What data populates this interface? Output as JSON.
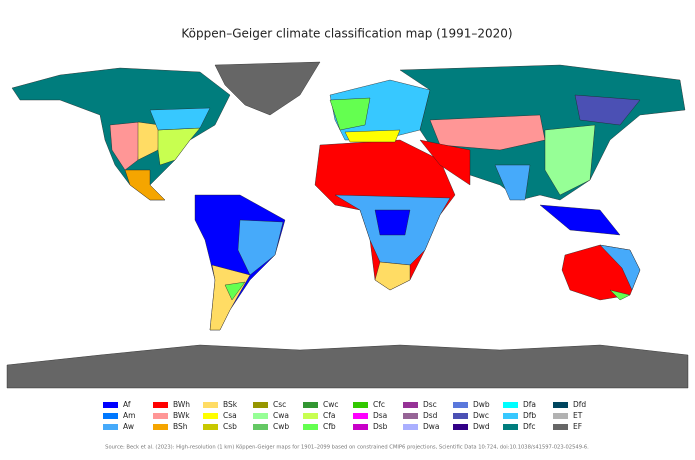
{
  "title": "Köppen–Geiger climate classification map (1991–2020)",
  "legend": [
    {
      "code": "Af",
      "color": "#0000ff"
    },
    {
      "code": "Am",
      "color": "#0078ff"
    },
    {
      "code": "Aw",
      "color": "#46aafa"
    },
    {
      "code": "BWh",
      "color": "#ff0000"
    },
    {
      "code": "BWk",
      "color": "#ff9696"
    },
    {
      "code": "BSh",
      "color": "#f5a500"
    },
    {
      "code": "BSk",
      "color": "#ffdc64"
    },
    {
      "code": "Csa",
      "color": "#ffff00"
    },
    {
      "code": "Csb",
      "color": "#c8c800"
    },
    {
      "code": "Csc",
      "color": "#969600"
    },
    {
      "code": "Cwa",
      "color": "#96ff96"
    },
    {
      "code": "Cwb",
      "color": "#64c864"
    },
    {
      "code": "Cwc",
      "color": "#329632"
    },
    {
      "code": "Cfa",
      "color": "#c8ff50"
    },
    {
      "code": "Cfb",
      "color": "#64ff50"
    },
    {
      "code": "Cfc",
      "color": "#32c800"
    },
    {
      "code": "Dsa",
      "color": "#ff00ff"
    },
    {
      "code": "Dsb",
      "color": "#c800c8"
    },
    {
      "code": "Dsc",
      "color": "#963296"
    },
    {
      "code": "Dsd",
      "color": "#966496"
    },
    {
      "code": "Dwa",
      "color": "#aaafff"
    },
    {
      "code": "Dwb",
      "color": "#5a78dc"
    },
    {
      "code": "Dwc",
      "color": "#4b50b4"
    },
    {
      "code": "Dwd",
      "color": "#320087"
    },
    {
      "code": "Dfa",
      "color": "#00ffff"
    },
    {
      "code": "Dfb",
      "color": "#37c8ff"
    },
    {
      "code": "Dfc",
      "color": "#007d7d"
    },
    {
      "code": "Dfd",
      "color": "#00465f"
    },
    {
      "code": "ET",
      "color": "#b2b2b2"
    },
    {
      "code": "EF",
      "color": "#666666"
    }
  ],
  "source": "Source: Beck et al. (2023): High-resolution (1 km) Köppen-Geiger maps for 1901–2099 based on constrained CMIP6 projections, Scientific Data 10:724, doi:10.1038/s41597-023-02549-6."
}
